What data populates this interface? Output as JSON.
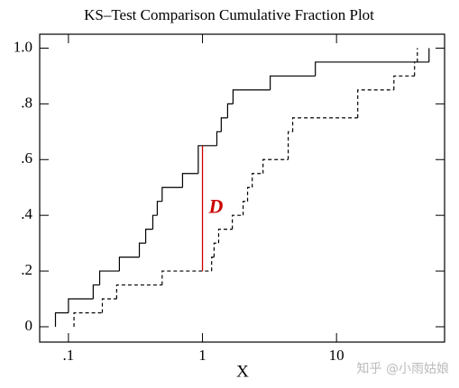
{
  "chart_data": {
    "type": "step",
    "title": "KS–Test Comparison Cumulative Fraction Plot",
    "xlabel": "X",
    "xscale": "log",
    "xlim": [
      0.061,
      64
    ],
    "ylim": [
      -0.055,
      1.05
    ],
    "xticks": [
      {
        "value": 0.1,
        "label": ".1"
      },
      1,
      10
    ],
    "yticks": [
      0,
      {
        "value": 0.2,
        "label": ".2"
      },
      {
        "value": 0.4,
        "label": ".4"
      },
      {
        "value": 0.6,
        "label": ".6"
      },
      {
        "value": 0.8,
        "label": ".8"
      },
      {
        "value": 1.0,
        "label": "1.0"
      }
    ],
    "series": [
      {
        "color": "#000000",
        "linestyle": "solid",
        "x": [
          0.08,
          0.1,
          0.153,
          0.171,
          0.24,
          0.338,
          0.377,
          0.426,
          0.46,
          0.5,
          0.71,
          0.93,
          1.28,
          1.38,
          1.54,
          1.69,
          3.2,
          6.95,
          49
        ],
        "values": [
          0.05,
          0.1,
          0.15,
          0.2,
          0.25,
          0.3,
          0.35,
          0.4,
          0.45,
          0.5,
          0.55,
          0.65,
          0.7,
          0.75,
          0.8,
          0.85,
          0.9,
          0.95,
          1.0
        ]
      },
      {
        "color": "#000000",
        "linestyle": "dashed",
        "x": [
          0.11,
          0.179,
          0.229,
          0.5,
          1.17,
          1.22,
          1.32,
          1.67,
          2.01,
          2.17,
          2.35,
          2.83,
          4.36,
          4.71,
          14.4,
          26.8,
          38.2,
          40.1
        ],
        "values": [
          0.05,
          0.1,
          0.15,
          0.2,
          0.25,
          0.3,
          0.35,
          0.4,
          0.45,
          0.5,
          0.55,
          0.6,
          0.7,
          0.75,
          0.85,
          0.9,
          0.95,
          1.0
        ]
      }
    ],
    "d_line": {
      "x": 1,
      "values": [
        0.2,
        0.65
      ],
      "label": "D",
      "color": "#cc0000"
    },
    "watermark": "知乎 @小雨姑娘"
  }
}
